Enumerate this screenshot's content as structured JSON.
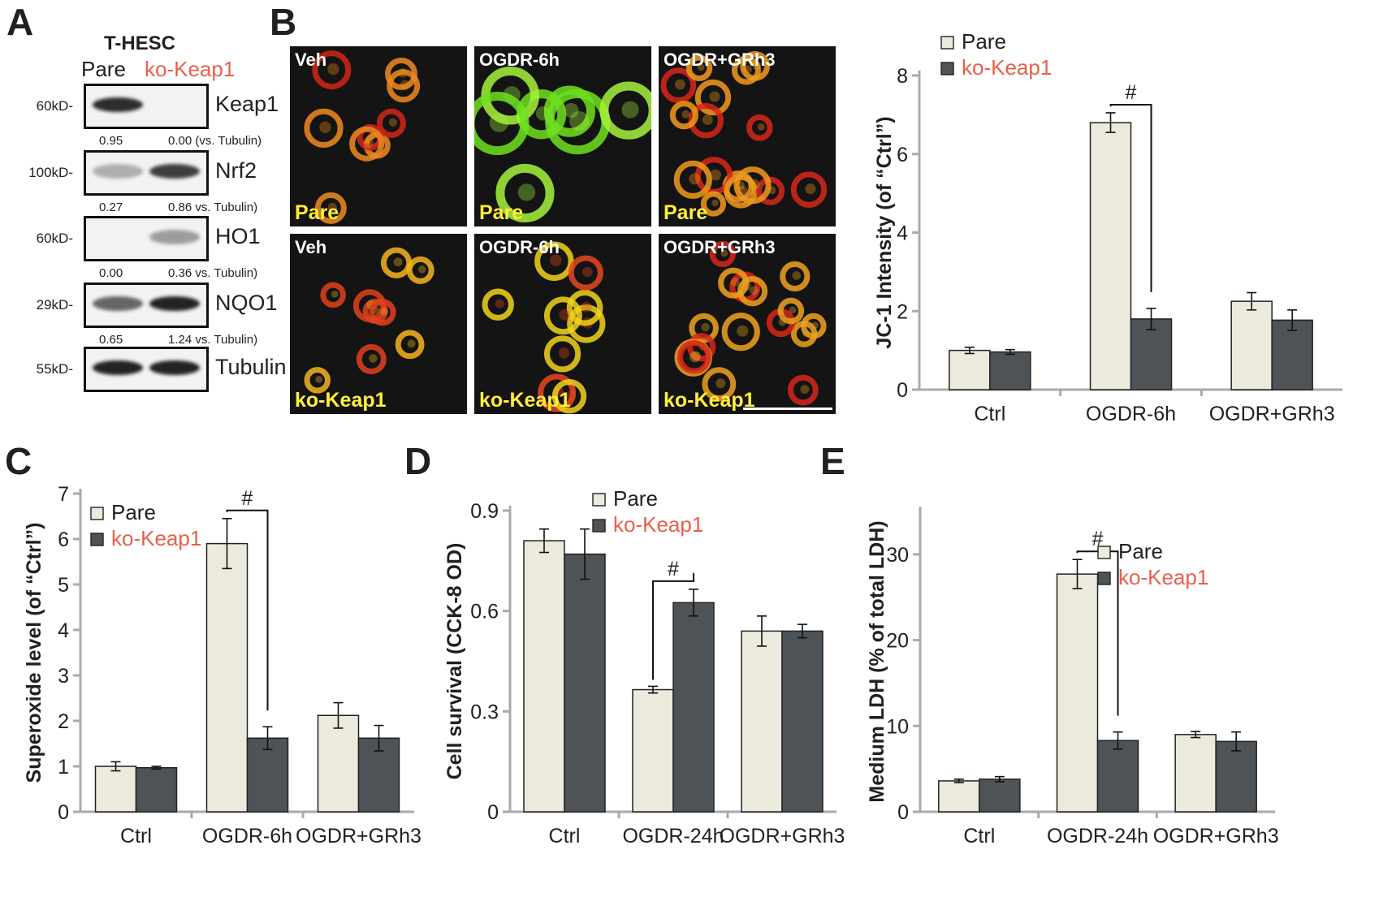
{
  "panels": {
    "A": "A",
    "B": "B",
    "C": "C",
    "D": "D",
    "E": "E"
  },
  "western_blot": {
    "cell_line": "T-HESC",
    "lanes": [
      "Pare",
      "ko-Keap1"
    ],
    "lane_colors": [
      "#231f20",
      "#e8604c"
    ],
    "rows": [
      {
        "mw": "60kD-",
        "protein": "Keap1",
        "quant_left": "0.95",
        "quant_right": "0.00 (vs. Tubulin)",
        "band_intensity": [
          0.95,
          0.0
        ]
      },
      {
        "mw": "100kD-",
        "protein": "Nrf2",
        "quant_left": "0.27",
        "quant_right": "0.86 vs. Tubulin)",
        "band_intensity": [
          0.27,
          0.86
        ]
      },
      {
        "mw": "60kD-",
        "protein": "HO1",
        "quant_left": "0.00",
        "quant_right": "0.36 vs. Tubulin)",
        "band_intensity": [
          0.0,
          0.36
        ]
      },
      {
        "mw": "29kD-",
        "protein": "NQO1",
        "quant_left": "0.65",
        "quant_right": "1.24 vs. Tubulin)",
        "band_intensity": [
          0.65,
          1.24
        ]
      },
      {
        "mw": "55kD-",
        "protein": "Tubulin",
        "quant_left": "",
        "quant_right": "",
        "band_intensity": [
          1.0,
          1.0
        ]
      }
    ]
  },
  "micrographs": {
    "columns": [
      "Veh",
      "OGDR-6h",
      "OGDR+GRh3"
    ],
    "rows": [
      "Pare",
      "ko-Keap1"
    ]
  },
  "chart_data": [
    {
      "id": "B",
      "type": "bar",
      "categories": [
        "Ctrl",
        "OGDR-6h",
        "OGDR+GRh3"
      ],
      "series": [
        {
          "name": "Pare",
          "values": [
            1.0,
            6.8,
            2.25
          ],
          "errors": [
            0.08,
            0.25,
            0.22
          ]
        },
        {
          "name": "ko-Keap1",
          "values": [
            0.96,
            1.8,
            1.77
          ],
          "errors": [
            0.06,
            0.27,
            0.26
          ]
        }
      ],
      "ylabel": "JC-1 Intensity (of “Ctrl”)",
      "ylim": [
        0,
        8
      ],
      "yticks": [
        0,
        2,
        4,
        6,
        8
      ],
      "annotation": "#",
      "legend": "top-left",
      "colors": [
        "#ebeadc",
        "#4d5357"
      ]
    },
    {
      "id": "C",
      "type": "bar",
      "categories": [
        "Ctrl",
        "OGDR-6h",
        "OGDR+GRh3"
      ],
      "series": [
        {
          "name": "Pare",
          "values": [
            1.0,
            5.9,
            2.12
          ],
          "errors": [
            0.1,
            0.55,
            0.28
          ]
        },
        {
          "name": "ko-Keap1",
          "values": [
            0.97,
            1.62,
            1.62
          ],
          "errors": [
            0.03,
            0.25,
            0.28
          ]
        }
      ],
      "ylabel": "Superoxide level (of “Ctrl”)",
      "ylim": [
        0,
        7
      ],
      "yticks": [
        0,
        1,
        2,
        3,
        4,
        5,
        6,
        7
      ],
      "annotation": "#",
      "legend": "top-left",
      "colors": [
        "#ebeadc",
        "#4d5357"
      ]
    },
    {
      "id": "D",
      "type": "bar",
      "categories": [
        "Ctrl",
        "OGDR-24h",
        "OGDR+GRh3"
      ],
      "series": [
        {
          "name": "Pare",
          "values": [
            0.81,
            0.365,
            0.54
          ],
          "errors": [
            0.035,
            0.01,
            0.045
          ]
        },
        {
          "name": "ko-Keap1",
          "values": [
            0.77,
            0.625,
            0.54
          ],
          "errors": [
            0.075,
            0.04,
            0.02
          ]
        }
      ],
      "ylabel": "Cell survival (CCK-8 OD)",
      "ylim": [
        0,
        0.9
      ],
      "yticks": [
        0,
        0.3,
        0.6,
        0.9
      ],
      "annotation": "#",
      "legend": "top-center",
      "colors": [
        "#ebeadc",
        "#4d5357"
      ]
    },
    {
      "id": "E",
      "type": "bar",
      "categories": [
        "Ctrl",
        "OGDR-24h",
        "OGDR+GRh3"
      ],
      "series": [
        {
          "name": "Pare",
          "values": [
            3.6,
            27.7,
            9.0
          ],
          "errors": [
            0.2,
            1.7,
            0.35
          ]
        },
        {
          "name": "ko-Keap1",
          "values": [
            3.8,
            8.3,
            8.2
          ],
          "errors": [
            0.3,
            1.0,
            1.1
          ]
        }
      ],
      "ylabel": "Medium LDH (% of total LDH)",
      "ylim": [
        0,
        35
      ],
      "yticks": [
        0,
        10,
        20,
        30
      ],
      "annotation": "#",
      "legend": "top-right",
      "colors": [
        "#ebeadc",
        "#4d5357"
      ]
    }
  ]
}
